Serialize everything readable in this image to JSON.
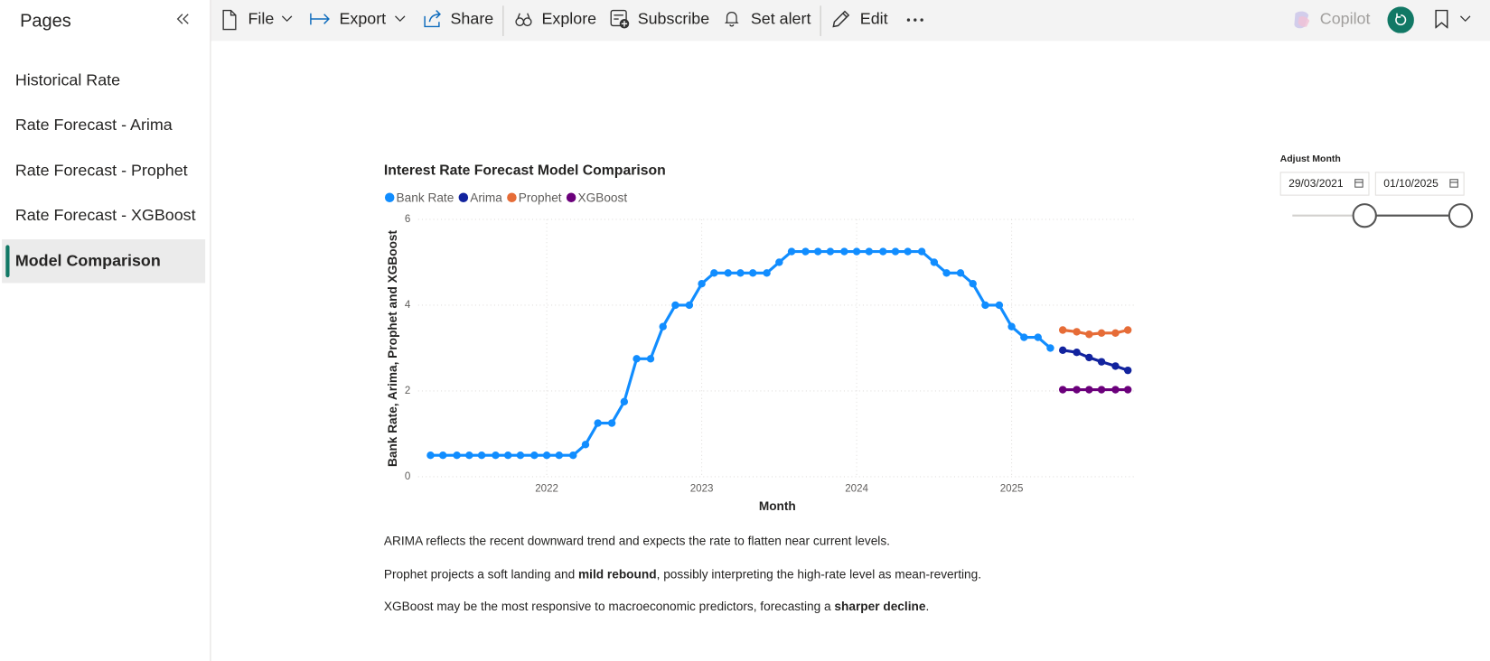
{
  "sidebar": {
    "title": "Pages",
    "pages": [
      "Historical Rate",
      "Rate Forecast - Arima",
      "Rate Forecast - Prophet",
      "Rate Forecast - XGBoost",
      "Model Comparison"
    ]
  },
  "toolbar": {
    "file": "File",
    "export": "Export",
    "share": "Share",
    "explore": "Explore",
    "subscribe": "Subscribe",
    "set_alert": "Set alert",
    "edit": "Edit",
    "copilot": "Copilot"
  },
  "slicer": {
    "title": "Adjust Month",
    "start": "29/03/2021",
    "end": "01/10/2025"
  },
  "notes": [
    [
      "ARIMA reflects the recent downward trend and expects the rate to flatten near current levels."
    ],
    [
      "Prophet projects a soft landing and ",
      "mild rebound",
      ", possibly interpreting the high-rate level as mean-reverting."
    ],
    [
      "XGBoost may be the most responsive to macroeconomic predictors, forecasting a ",
      "sharper decline",
      "."
    ]
  ],
  "chart_data": {
    "type": "line",
    "title": "Interest Rate Forecast Model Comparison",
    "x_label": "Month",
    "y_label": "Bank Rate, Arima, Prophet and XGBoost",
    "x": [
      2021.25,
      2021.33,
      2021.42,
      2021.5,
      2021.58,
      2021.67,
      2021.75,
      2021.83,
      2021.92,
      2022,
      2022.08,
      2022.17,
      2022.25,
      2022.33,
      2022.42,
      2022.5,
      2022.58,
      2022.67,
      2022.75,
      2022.83,
      2022.92,
      2023,
      2023.08,
      2023.17,
      2023.25,
      2023.33,
      2023.42,
      2023.5,
      2023.58,
      2023.67,
      2023.75,
      2023.83,
      2023.92,
      2024,
      2024.08,
      2024.17,
      2024.25,
      2024.33,
      2024.42,
      2024.5,
      2024.58,
      2024.67,
      2024.75,
      2024.83,
      2024.92,
      2025,
      2025.08,
      2025.17,
      2025.25,
      2025.33,
      2025.42,
      2025.5,
      2025.58,
      2025.67,
      2025.75
    ],
    "series": [
      {
        "name": "Bank Rate",
        "color": "#118dff",
        "values": [
          0.5,
          0.5,
          0.5,
          0.5,
          0.5,
          0.5,
          0.5,
          0.5,
          0.5,
          0.5,
          0.5,
          0.5,
          0.75,
          1.25,
          1.25,
          1.75,
          2.75,
          2.75,
          3.5,
          4.0,
          4.0,
          4.5,
          4.75,
          4.75,
          4.75,
          4.75,
          4.75,
          5.0,
          5.25,
          5.25,
          5.25,
          5.25,
          5.25,
          5.25,
          5.25,
          5.25,
          5.25,
          5.25,
          5.25,
          5.0,
          4.75,
          4.75,
          4.5,
          4.0,
          4.0,
          3.5,
          3.25,
          3.25,
          3.0,
          null,
          null,
          null,
          null,
          null,
          null
        ]
      },
      {
        "name": "Arima",
        "color": "#12239e",
        "values": [
          null,
          null,
          null,
          null,
          null,
          null,
          null,
          null,
          null,
          null,
          null,
          null,
          null,
          null,
          null,
          null,
          null,
          null,
          null,
          null,
          null,
          null,
          null,
          null,
          null,
          null,
          null,
          null,
          null,
          null,
          null,
          null,
          null,
          null,
          null,
          null,
          null,
          null,
          null,
          null,
          null,
          null,
          null,
          null,
          null,
          null,
          null,
          null,
          null,
          2.95,
          2.9,
          2.78,
          2.68,
          2.58,
          2.48
        ]
      },
      {
        "name": "Prophet",
        "color": "#e66c37",
        "values": [
          null,
          null,
          null,
          null,
          null,
          null,
          null,
          null,
          null,
          null,
          null,
          null,
          null,
          null,
          null,
          null,
          null,
          null,
          null,
          null,
          null,
          null,
          null,
          null,
          null,
          null,
          null,
          null,
          null,
          null,
          null,
          null,
          null,
          null,
          null,
          null,
          null,
          null,
          null,
          null,
          null,
          null,
          null,
          null,
          null,
          null,
          null,
          null,
          null,
          3.42,
          3.38,
          3.32,
          3.35,
          3.35,
          3.42
        ]
      },
      {
        "name": "XGBoost",
        "color": "#6b007b",
        "values": [
          null,
          null,
          null,
          null,
          null,
          null,
          null,
          null,
          null,
          null,
          null,
          null,
          null,
          null,
          null,
          null,
          null,
          null,
          null,
          null,
          null,
          null,
          null,
          null,
          null,
          null,
          null,
          null,
          null,
          null,
          null,
          null,
          null,
          null,
          null,
          null,
          null,
          null,
          null,
          null,
          null,
          null,
          null,
          null,
          null,
          null,
          null,
          null,
          null,
          2.03,
          2.03,
          2.03,
          2.03,
          2.03,
          2.03
        ]
      }
    ],
    "xlim": [
      2021.17,
      2025.8
    ],
    "xticks": [
      2022,
      2023,
      2024,
      2025
    ],
    "ylim": [
      0,
      6
    ],
    "yticks": [
      0,
      2,
      4,
      6
    ],
    "grid": true
  }
}
